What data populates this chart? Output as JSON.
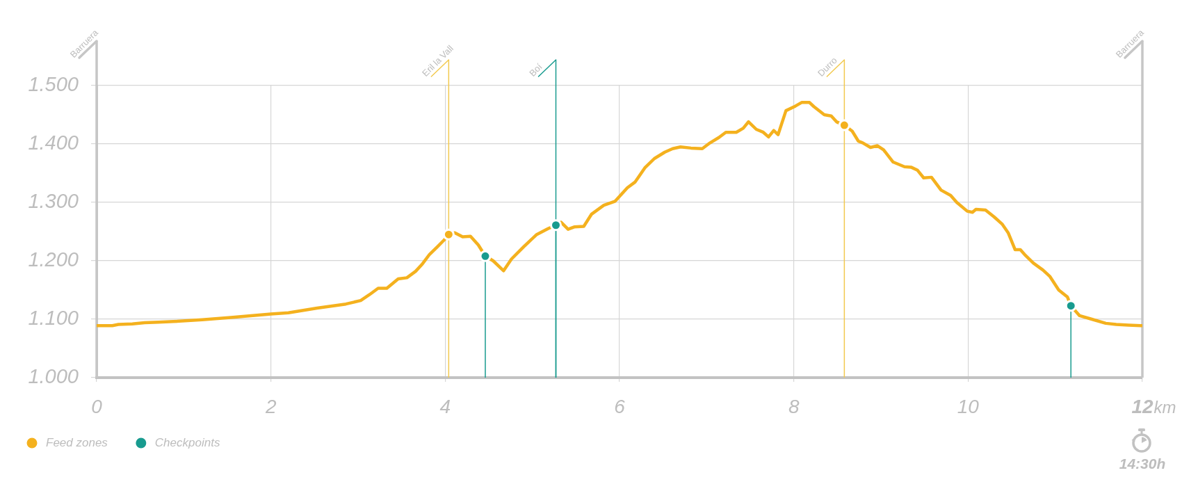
{
  "chart_data": {
    "type": "line",
    "x": [
      0,
      0.18,
      0.25,
      0.41,
      0.55,
      0.71,
      0.88,
      1.21,
      1.54,
      2.0,
      2.2,
      2.53,
      2.86,
      3.03,
      3.13,
      3.23,
      3.33,
      3.46,
      3.56,
      3.66,
      3.74,
      3.82,
      3.91,
      3.99,
      4.04,
      4.11,
      4.2,
      4.29,
      4.38,
      4.46,
      4.55,
      4.67,
      4.76,
      4.9,
      5.05,
      5.18,
      5.27,
      5.33,
      5.41,
      5.48,
      5.59,
      5.68,
      5.82,
      5.95,
      6.09,
      6.18,
      6.29,
      6.4,
      6.52,
      6.61,
      6.7,
      6.82,
      6.95,
      7.04,
      7.14,
      7.22,
      7.34,
      7.42,
      7.48,
      7.57,
      7.65,
      7.71,
      7.77,
      7.82,
      7.91,
      8.02,
      8.09,
      8.18,
      8.23,
      8.35,
      8.43,
      8.49,
      8.58,
      8.67,
      8.74,
      8.79,
      8.88,
      8.96,
      9.03,
      9.14,
      9.27,
      9.35,
      9.42,
      9.49,
      9.58,
      9.69,
      9.8,
      9.87,
      9.99,
      10.05,
      10.09,
      10.2,
      10.3,
      10.39,
      10.46,
      10.54,
      10.6,
      10.66,
      10.75,
      10.86,
      10.94,
      11.04,
      11.14,
      11.18,
      11.28,
      11.42,
      11.58,
      11.7,
      11.84,
      11.98,
      12
    ],
    "series": [
      {
        "color": "#f4b11e",
        "marker": "none",
        "values": [
          1089,
          1089,
          1091,
          1092,
          1094,
          1095,
          1096,
          1099,
          1103,
          1109,
          1111,
          1119,
          1126,
          1132,
          1142,
          1153,
          1153,
          1169,
          1171,
          1182,
          1195,
          1211,
          1224,
          1236,
          1245,
          1248,
          1241,
          1242,
          1227,
          1208,
          1200,
          1183,
          1203,
          1224,
          1245,
          1255,
          1261,
          1266,
          1254,
          1258,
          1259,
          1280,
          1295,
          1302,
          1325,
          1335,
          1359,
          1375,
          1386,
          1392,
          1395,
          1393,
          1392,
          1402,
          1411,
          1420,
          1420,
          1427,
          1438,
          1425,
          1420,
          1412,
          1423,
          1416,
          1457,
          1465,
          1471,
          1471,
          1464,
          1450,
          1448,
          1438,
          1432,
          1422,
          1405,
          1402,
          1394,
          1397,
          1390,
          1369,
          1361,
          1360,
          1355,
          1342,
          1343,
          1321,
          1312,
          1300,
          1285,
          1283,
          1288,
          1287,
          1275,
          1263,
          1248,
          1219,
          1219,
          1209,
          1196,
          1184,
          1173,
          1150,
          1138,
          1123,
          1106,
          1100,
          1093,
          1091,
          1090,
          1089,
          1089
        ]
      },
      {
        "name": "Feed zones",
        "type": "scatter",
        "color": "#f4b11e",
        "marker": "circle",
        "x": [
          4.04,
          8.58
        ],
        "values": [
          1245,
          1432
        ]
      },
      {
        "name": "Checkpoints",
        "type": "lollipop",
        "color": "#189b8f",
        "marker": "circle",
        "x": [
          4.46,
          5.27,
          11.18
        ],
        "values": [
          1208,
          1261,
          1123
        ]
      }
    ],
    "xlim": [
      0,
      12
    ],
    "xticks": [
      0,
      2,
      4,
      6,
      8,
      10,
      12
    ],
    "xlabel": "km",
    "ylim": [
      1000,
      1500
    ],
    "yticks": [
      {
        "value": 1000,
        "label": "1.000"
      },
      {
        "value": 1100,
        "label": "1.100"
      },
      {
        "value": 1200,
        "label": "1.200"
      },
      {
        "value": 1300,
        "label": "1.300"
      },
      {
        "value": 1400,
        "label": "1.400"
      },
      {
        "value": 1500,
        "label": "1.500"
      }
    ],
    "grid": true,
    "legend": "bottom left",
    "ref_lines": [
      {
        "axis": "x",
        "value": 0,
        "label": "Barruera",
        "color": "#c6c6c6"
      },
      {
        "axis": "x",
        "value": 4.04,
        "label": "Eril la Vall",
        "color": "#f2c94f"
      },
      {
        "axis": "x",
        "value": 5.27,
        "label": "Boí",
        "color": "#189b8f"
      },
      {
        "axis": "x",
        "value": 8.58,
        "label": "Durro",
        "color": "#f2c94f"
      },
      {
        "axis": "x",
        "value": 12,
        "label": "Barruera",
        "color": "#c6c6c6"
      }
    ],
    "annotations": [
      "14:30h"
    ]
  }
}
